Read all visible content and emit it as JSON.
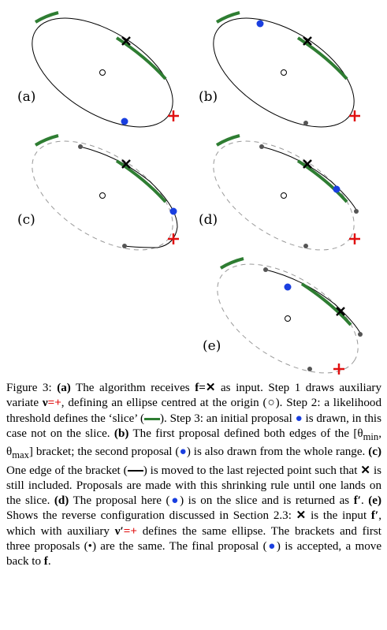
{
  "panels": [
    {
      "id": "a",
      "label": "(a)"
    },
    {
      "id": "b",
      "label": "(b)"
    },
    {
      "id": "c",
      "label": "(c)"
    },
    {
      "id": "d",
      "label": "(d)"
    },
    {
      "id": "e",
      "label": "(e)"
    }
  ],
  "caption": {
    "figure_label": "Figure 3:",
    "s1_label": "(a)",
    "s1_text1": " The algorithm receives ",
    "f_sym": "f",
    "eq_x": "=✕",
    "s1_text2": " as input. Step 1 draws auxiliary variate ",
    "nu_sym": "ν",
    "eq_plus": "=+",
    "s1_text3": ", defining an ellipse centred at the origin (○). Step 2: a likelihood threshold defines the ‘slice’ (",
    "s1_text4": "). Step 3: an initial proposal ",
    "dot_blue": "●",
    "s1_text5": " is drawn, in this case not on the slice. ",
    "b_label": "(b)",
    "b_text1": " The first proposal defined both edges of the [θ",
    "sub_min": "min",
    "b_text_comma": ", θ",
    "sub_max": "max",
    "b_text2": "] bracket; the second proposal (",
    "b_text3": ") is also drawn from the whole range. ",
    "c_label": "(c)",
    "c_text1": " One edge of the bracket (",
    "c_text2": ") is moved to the last rejected point such that ",
    "c_x": "✕",
    "c_text3": " is still included. Proposals are made with this shrinking rule until one lands on the slice. ",
    "d_label": "(d)",
    "d_text1": " The proposal here (",
    "d_text2": ") is on the slice and is returned as ",
    "fprime": "f′",
    "d_text3": ". ",
    "e_label": "(e)",
    "e_text1": " Shows the reverse configuration discussed in Section 2.3: ",
    "e_x": "✕",
    "e_text2": " is the input ",
    "e_text3": ", which with auxiliary ",
    "nuprime": "ν′",
    "e_text4": " defines the same ellipse. The brackets and first three proposals (",
    "dot_grey": "•",
    "e_text5": ") are the same. The final proposal (",
    "e_text6": ") is accepted, a move back to ",
    "end_f": "f",
    "end_dot": "."
  },
  "colors": {
    "slice": "#2e7d32",
    "proposal": "#1a3fe0",
    "aux": "#e01010",
    "rejected": "#555555"
  }
}
